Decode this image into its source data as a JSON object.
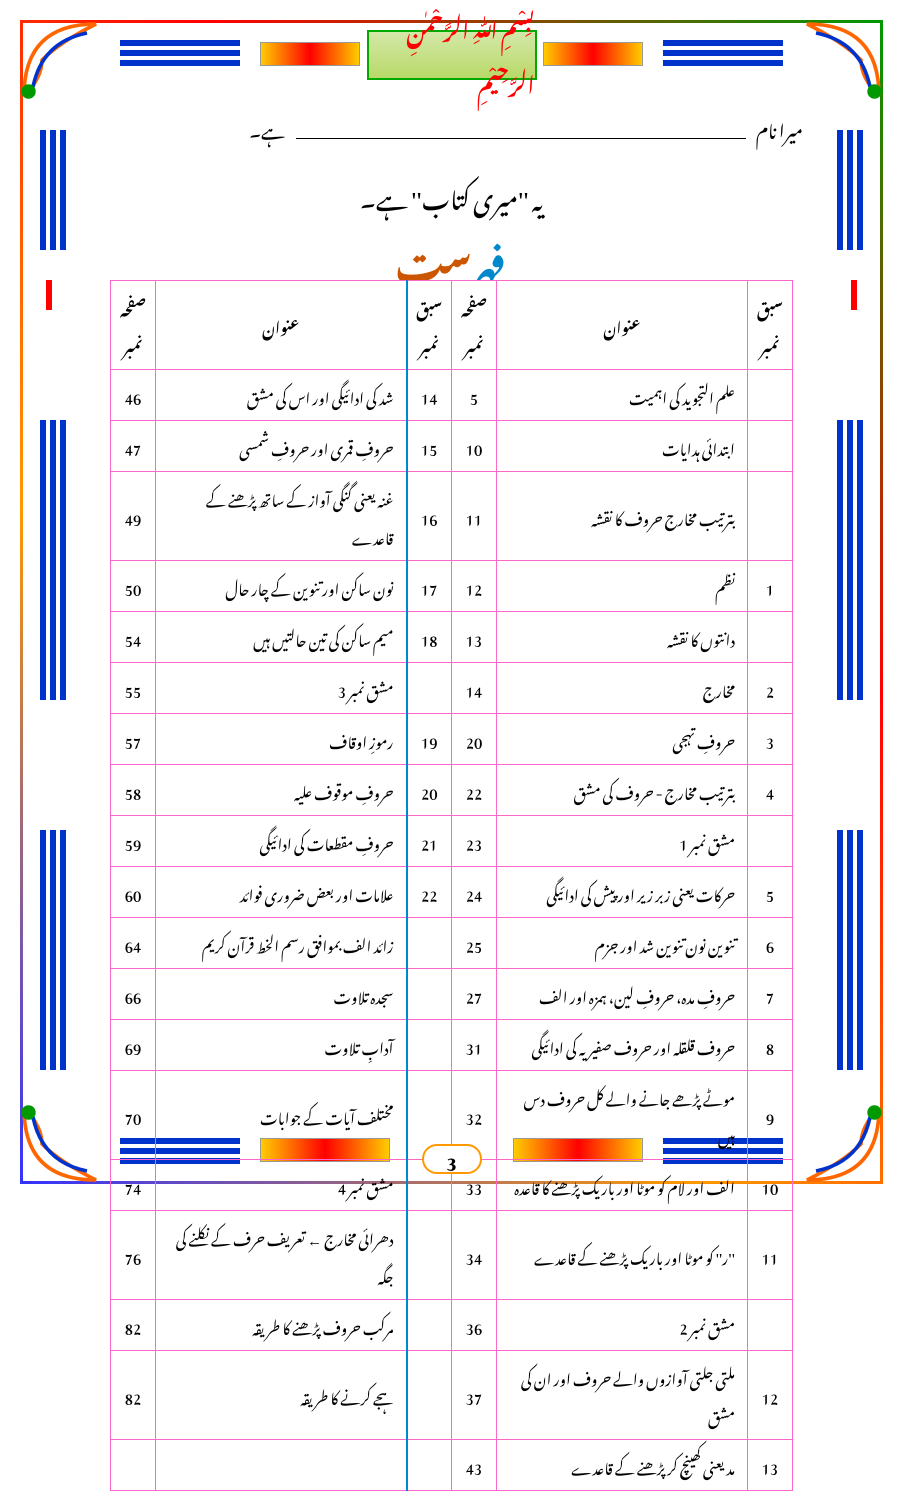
{
  "bismillah": "بِسْمِ اللّٰہِ الرَّحْمٰنِ الرَّحِیْمِ",
  "name_label_right": "میرا نام",
  "name_label_left": "ہے۔",
  "subtitle": "یہ ''میری کتاب'' ہے۔",
  "fehrist_label": "فہرست",
  "headers": {
    "lesson": "سبق نمبر",
    "title": "عنوان",
    "page": "صفحہ نمبر"
  },
  "rows_right": [
    {
      "lesson": "",
      "title": "علم التجوید کی اہمیت",
      "page": "5"
    },
    {
      "lesson": "",
      "title": "ابتدائی ہدایات",
      "page": "10"
    },
    {
      "lesson": "",
      "title": "بترتیب مخارج حروف کا نقشہ",
      "page": "11"
    },
    {
      "lesson": "1",
      "title": "نظم",
      "page": "12"
    },
    {
      "lesson": "",
      "title": "دانتوں کا نقشہ",
      "page": "13"
    },
    {
      "lesson": "2",
      "title": "مخارج",
      "page": "14"
    },
    {
      "lesson": "3",
      "title": "حروفِ تہجی",
      "page": "20"
    },
    {
      "lesson": "4",
      "title": "بترتیب مخارج - حروف کی مشق",
      "page": "22"
    },
    {
      "lesson": "",
      "title": "مشق نمبر 1",
      "page": "23"
    },
    {
      "lesson": "5",
      "title": "حرکات یعنی زبر زیر اور پیش کی ادائیگی",
      "page": "24"
    },
    {
      "lesson": "6",
      "title": "تنوین نون تنوین شد اور جزم",
      "page": "25"
    },
    {
      "lesson": "7",
      "title": "حروفِ مدہ، حروفِ لین، ہمزہ اور الف",
      "page": "27"
    },
    {
      "lesson": "8",
      "title": "حروف قلقلہ اور حروف صفیریہ کی ادائیگی",
      "page": "31"
    },
    {
      "lesson": "9",
      "title": "موٹے پڑھے جانے والے کل حروف دس ہیں",
      "page": "32"
    },
    {
      "lesson": "10",
      "title": "الف اور لام کو موٹا اور باریک پڑھنے کا قاعدہ",
      "page": "33"
    },
    {
      "lesson": "11",
      "title": "''ر'' کو موٹا اور باریک پڑھنے کے قاعدے",
      "page": "34"
    },
    {
      "lesson": "",
      "title": "مشق نمبر 2",
      "page": "36"
    },
    {
      "lesson": "12",
      "title": "ملتی جلتی آوازوں والے حروف اور ان کی مشق",
      "page": "37"
    },
    {
      "lesson": "13",
      "title": "مد یعنی کھینچ کر پڑھنے کے قاعدے",
      "page": "43"
    }
  ],
  "rows_left": [
    {
      "lesson": "14",
      "title": "شد کی ادائیگی اور اس کی مشق",
      "page": "46"
    },
    {
      "lesson": "15",
      "title": "حروفِ قمری اور حروفِ شمسی",
      "page": "47"
    },
    {
      "lesson": "16",
      "title": "غنہ یعنی گنگی آواز کے ساتھ پڑھنے کے قاعدے",
      "page": "49"
    },
    {
      "lesson": "17",
      "title": "نون ساکن اور تنوین کے چار حال",
      "page": "50"
    },
    {
      "lesson": "18",
      "title": "میم ساکن کی تین حالتیں ہیں",
      "page": "54"
    },
    {
      "lesson": "",
      "title": "مشق نمبر 3",
      "page": "55"
    },
    {
      "lesson": "19",
      "title": "رموزِ اوقاف",
      "page": "57"
    },
    {
      "lesson": "20",
      "title": "حروفِ موقوف علیہ",
      "page": "58"
    },
    {
      "lesson": "21",
      "title": "حروفِ مقطعات کی ادائیگی",
      "page": "59"
    },
    {
      "lesson": "22",
      "title": "علامات اور بعض ضروری فوائد",
      "page": "60"
    },
    {
      "lesson": "",
      "title": "زائد الف بموافق رسم الخط قرآن کریم",
      "page": "64"
    },
    {
      "lesson": "",
      "title": "سجدہ تلاوت",
      "page": "66"
    },
    {
      "lesson": "",
      "title": "آدابِ تلاوت",
      "page": "69"
    },
    {
      "lesson": "",
      "title": "مختلف آیات کے جوابات",
      "page": "70"
    },
    {
      "lesson": "",
      "title": "مشق نمبر 4",
      "page": "74"
    },
    {
      "lesson": "",
      "title": "دھرائی    مخارج ← تعریف حرف کے نکلنے کی جگہ",
      "page": "76"
    },
    {
      "lesson": "",
      "title": "مرکب حروف پڑھنے کا طریقہ",
      "page": "82"
    },
    {
      "lesson": "",
      "title": "ہجے کرنے کا طریقہ",
      "page": "82"
    },
    {
      "lesson": "",
      "title": "",
      "page": ""
    }
  ],
  "page_number": "3",
  "colors": {
    "border_pink": "#ff66cc",
    "divider_blue": "#0088cc",
    "fehrist_blue": "#0088cc",
    "fehrist_orange": "#cc5500"
  }
}
